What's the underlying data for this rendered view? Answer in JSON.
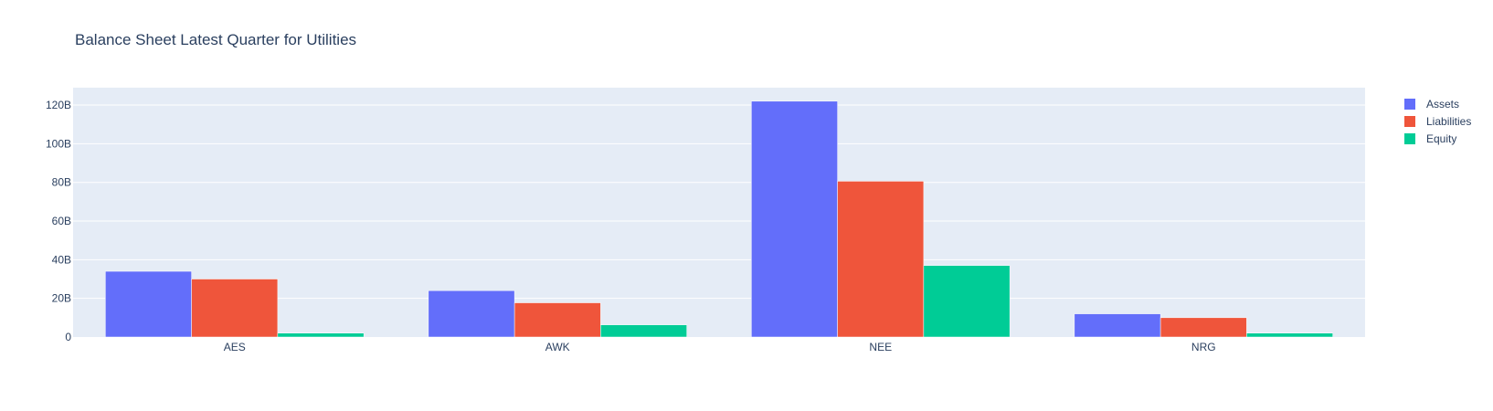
{
  "chart_data": {
    "type": "bar",
    "title": "Balance Sheet Latest Quarter for Utilities",
    "xlabel": "",
    "ylabel": "",
    "categories": [
      "AES",
      "AWK",
      "NEE",
      "NRG"
    ],
    "series": [
      {
        "name": "Assets",
        "color": "#636efa",
        "values": [
          34.0,
          24.0,
          122.0,
          12.0
        ]
      },
      {
        "name": "Liabilities",
        "color": "#ef553b",
        "values": [
          30.0,
          17.7,
          80.6,
          10.0
        ]
      },
      {
        "name": "Equity",
        "color": "#00cc96",
        "values": [
          2.0,
          6.3,
          37.0,
          2.0
        ]
      }
    ],
    "ylim": [
      0,
      129
    ],
    "yticks": [
      0,
      20,
      40,
      60,
      80,
      100,
      120
    ],
    "ytick_labels": [
      "0",
      "20B",
      "40B",
      "60B",
      "80B",
      "100B",
      "120B"
    ],
    "grid": true,
    "legend_position": "top-right",
    "plot_background": "#e5ecf6",
    "text_color": "#2a3f5f"
  }
}
